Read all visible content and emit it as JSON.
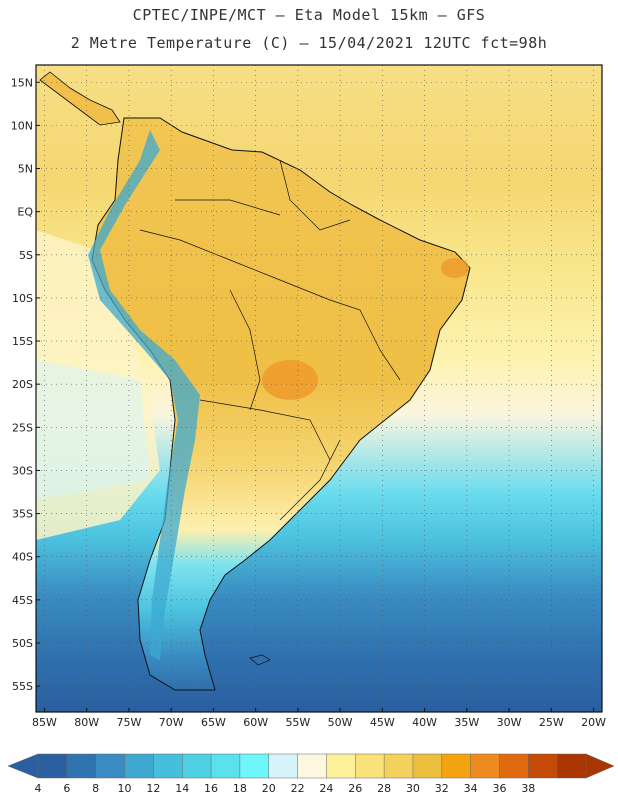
{
  "header": {
    "line1": "CPTEC/INPE/MCT –  Eta Model 15km – GFS",
    "line2": "2 Metre Temperature (C) – 15/04/2021 12UTC fct=98h"
  },
  "map": {
    "lon_range": [
      -86,
      -19
    ],
    "lat_range": [
      -58,
      17
    ],
    "lat_labels": [
      "15N",
      "10N",
      "5N",
      "EQ",
      "5S",
      "10S",
      "15S",
      "20S",
      "25S",
      "30S",
      "35S",
      "40S",
      "45S",
      "50S",
      "55S"
    ],
    "lat_values": [
      15,
      10,
      5,
      0,
      -5,
      -10,
      -15,
      -20,
      -25,
      -30,
      -35,
      -40,
      -45,
      -50,
      -55
    ],
    "lon_labels": [
      "85W",
      "80W",
      "75W",
      "70W",
      "65W",
      "60W",
      "55W",
      "50W",
      "45W",
      "40W",
      "35W",
      "30W",
      "25W",
      "20W"
    ],
    "lon_values": [
      -85,
      -80,
      -75,
      -70,
      -65,
      -60,
      -55,
      -50,
      -45,
      -40,
      -35,
      -30,
      -25,
      -20
    ]
  },
  "colorbar": {
    "labels": [
      "4",
      "6",
      "8",
      "10",
      "12",
      "14",
      "16",
      "18",
      "20",
      "22",
      "24",
      "26",
      "28",
      "30",
      "32",
      "34",
      "36",
      "38"
    ],
    "colors": [
      "#2a5fa0",
      "#2f73b0",
      "#3a8cc2",
      "#3ea8d0",
      "#45bfdc",
      "#4fd0e4",
      "#5be0ee",
      "#6ff6fa",
      "#d6f4fa",
      "#fdf7e2",
      "#fdf29a",
      "#fae27a",
      "#f3d15c",
      "#edbf3e",
      "#f2a30f",
      "#ee8b20",
      "#e06a10",
      "#c44a06",
      "#a93600"
    ]
  }
}
